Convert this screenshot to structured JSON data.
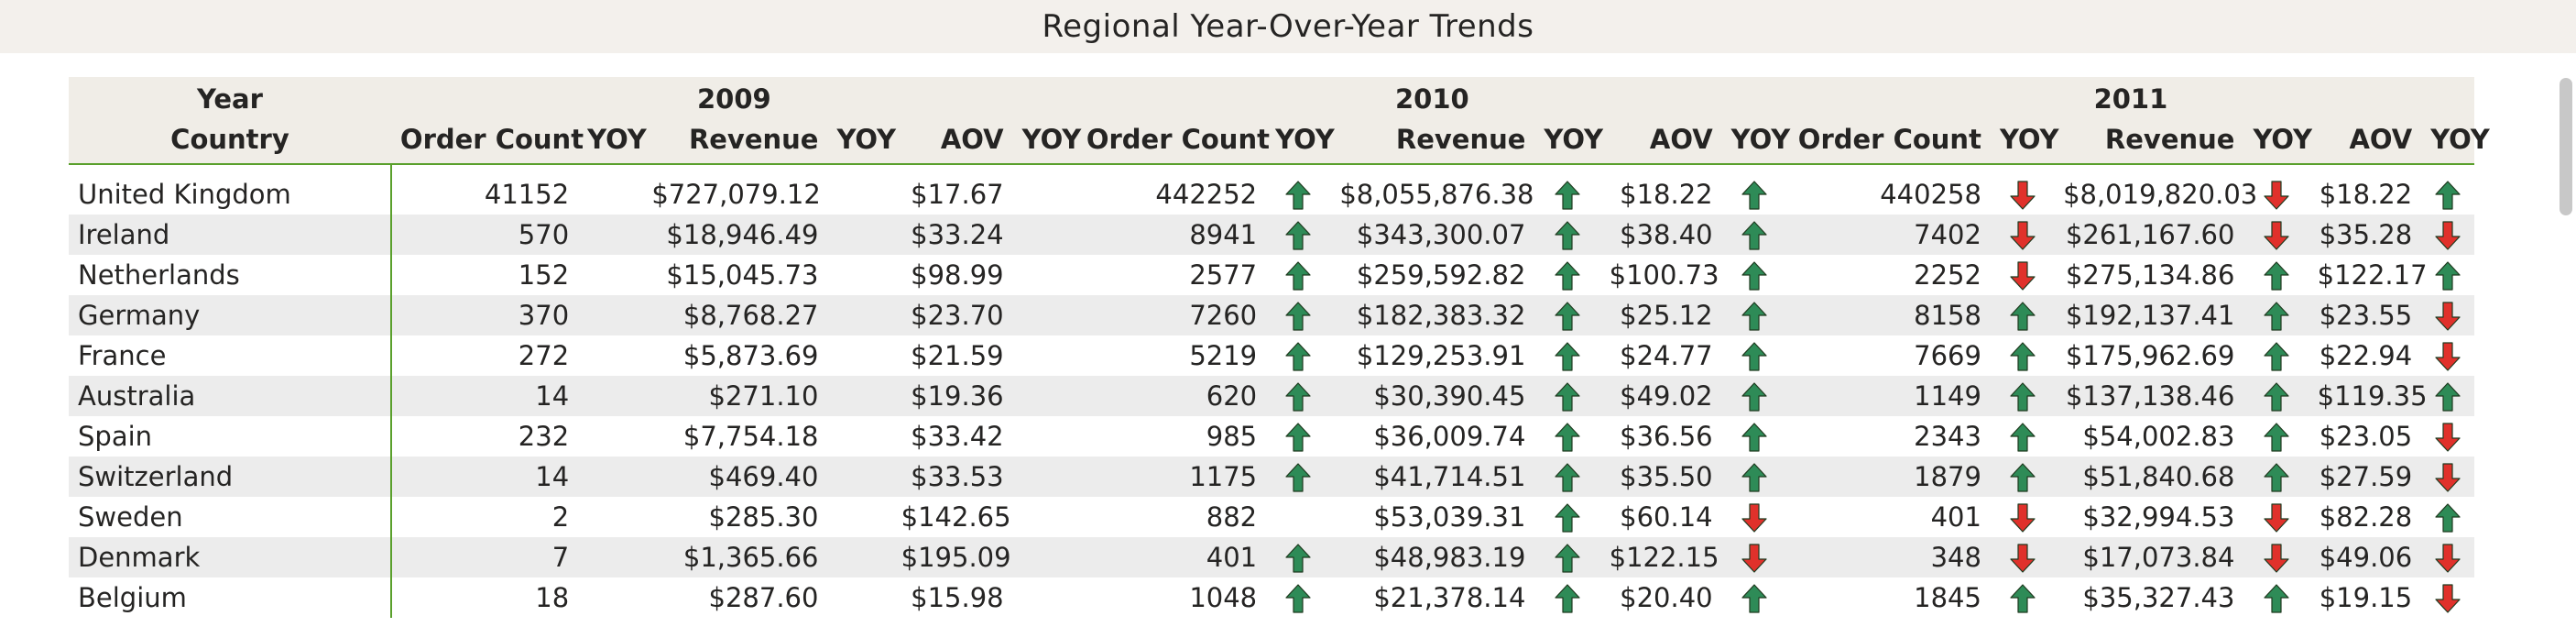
{
  "title": "Regional Year-Over-Year Trends",
  "header": {
    "row_label_year": "Year",
    "row_label_country": "Country",
    "years": [
      "2009",
      "2010",
      "2011"
    ],
    "columns": [
      "Order Count",
      "YOY",
      "Revenue",
      "YOY",
      "AOV",
      "YOY"
    ]
  },
  "colors": {
    "up_arrow": "#2e8b57",
    "down_arrow": "#e0312b",
    "accent_border": "#5aa02c"
  },
  "rows": [
    {
      "country": "United Kingdom",
      "y2009": {
        "orders": "41152",
        "revenue": "$727,079.12",
        "aov": "$17.67",
        "orders_yoy": "",
        "revenue_yoy": "",
        "aov_yoy": ""
      },
      "y2010": {
        "orders": "442252",
        "revenue": "$8,055,876.38",
        "aov": "$18.22",
        "orders_yoy": "up",
        "revenue_yoy": "up",
        "aov_yoy": "up"
      },
      "y2011": {
        "orders": "440258",
        "revenue": "$8,019,820.03",
        "aov": "$18.22",
        "orders_yoy": "down",
        "revenue_yoy": "down",
        "aov_yoy": "up"
      }
    },
    {
      "country": "Ireland",
      "y2009": {
        "orders": "570",
        "revenue": "$18,946.49",
        "aov": "$33.24",
        "orders_yoy": "",
        "revenue_yoy": "",
        "aov_yoy": ""
      },
      "y2010": {
        "orders": "8941",
        "revenue": "$343,300.07",
        "aov": "$38.40",
        "orders_yoy": "up",
        "revenue_yoy": "up",
        "aov_yoy": "up"
      },
      "y2011": {
        "orders": "7402",
        "revenue": "$261,167.60",
        "aov": "$35.28",
        "orders_yoy": "down",
        "revenue_yoy": "down",
        "aov_yoy": "down"
      }
    },
    {
      "country": "Netherlands",
      "y2009": {
        "orders": "152",
        "revenue": "$15,045.73",
        "aov": "$98.99",
        "orders_yoy": "",
        "revenue_yoy": "",
        "aov_yoy": ""
      },
      "y2010": {
        "orders": "2577",
        "revenue": "$259,592.82",
        "aov": "$100.73",
        "orders_yoy": "up",
        "revenue_yoy": "up",
        "aov_yoy": "up"
      },
      "y2011": {
        "orders": "2252",
        "revenue": "$275,134.86",
        "aov": "$122.17",
        "orders_yoy": "down",
        "revenue_yoy": "up",
        "aov_yoy": "up"
      }
    },
    {
      "country": "Germany",
      "y2009": {
        "orders": "370",
        "revenue": "$8,768.27",
        "aov": "$23.70",
        "orders_yoy": "",
        "revenue_yoy": "",
        "aov_yoy": ""
      },
      "y2010": {
        "orders": "7260",
        "revenue": "$182,383.32",
        "aov": "$25.12",
        "orders_yoy": "up",
        "revenue_yoy": "up",
        "aov_yoy": "up"
      },
      "y2011": {
        "orders": "8158",
        "revenue": "$192,137.41",
        "aov": "$23.55",
        "orders_yoy": "up",
        "revenue_yoy": "up",
        "aov_yoy": "down"
      }
    },
    {
      "country": "France",
      "y2009": {
        "orders": "272",
        "revenue": "$5,873.69",
        "aov": "$21.59",
        "orders_yoy": "",
        "revenue_yoy": "",
        "aov_yoy": ""
      },
      "y2010": {
        "orders": "5219",
        "revenue": "$129,253.91",
        "aov": "$24.77",
        "orders_yoy": "up",
        "revenue_yoy": "up",
        "aov_yoy": "up"
      },
      "y2011": {
        "orders": "7669",
        "revenue": "$175,962.69",
        "aov": "$22.94",
        "orders_yoy": "up",
        "revenue_yoy": "up",
        "aov_yoy": "down"
      }
    },
    {
      "country": "Australia",
      "y2009": {
        "orders": "14",
        "revenue": "$271.10",
        "aov": "$19.36",
        "orders_yoy": "",
        "revenue_yoy": "",
        "aov_yoy": ""
      },
      "y2010": {
        "orders": "620",
        "revenue": "$30,390.45",
        "aov": "$49.02",
        "orders_yoy": "up",
        "revenue_yoy": "up",
        "aov_yoy": "up"
      },
      "y2011": {
        "orders": "1149",
        "revenue": "$137,138.46",
        "aov": "$119.35",
        "orders_yoy": "up",
        "revenue_yoy": "up",
        "aov_yoy": "up"
      }
    },
    {
      "country": "Spain",
      "y2009": {
        "orders": "232",
        "revenue": "$7,754.18",
        "aov": "$33.42",
        "orders_yoy": "",
        "revenue_yoy": "",
        "aov_yoy": ""
      },
      "y2010": {
        "orders": "985",
        "revenue": "$36,009.74",
        "aov": "$36.56",
        "orders_yoy": "up",
        "revenue_yoy": "up",
        "aov_yoy": "up"
      },
      "y2011": {
        "orders": "2343",
        "revenue": "$54,002.83",
        "aov": "$23.05",
        "orders_yoy": "up",
        "revenue_yoy": "up",
        "aov_yoy": "down"
      }
    },
    {
      "country": "Switzerland",
      "y2009": {
        "orders": "14",
        "revenue": "$469.40",
        "aov": "$33.53",
        "orders_yoy": "",
        "revenue_yoy": "",
        "aov_yoy": ""
      },
      "y2010": {
        "orders": "1175",
        "revenue": "$41,714.51",
        "aov": "$35.50",
        "orders_yoy": "up",
        "revenue_yoy": "up",
        "aov_yoy": "up"
      },
      "y2011": {
        "orders": "1879",
        "revenue": "$51,840.68",
        "aov": "$27.59",
        "orders_yoy": "up",
        "revenue_yoy": "up",
        "aov_yoy": "down"
      }
    },
    {
      "country": "Sweden",
      "y2009": {
        "orders": "2",
        "revenue": "$285.30",
        "aov": "$142.65",
        "orders_yoy": "",
        "revenue_yoy": "",
        "aov_yoy": ""
      },
      "y2010": {
        "orders": "882",
        "revenue": "$53,039.31",
        "aov": "$60.14",
        "orders_yoy": "",
        "revenue_yoy": "up",
        "aov_yoy": "down"
      },
      "y2011": {
        "orders": "401",
        "revenue": "$32,994.53",
        "aov": "$82.28",
        "orders_yoy": "down",
        "revenue_yoy": "down",
        "aov_yoy": "up"
      }
    },
    {
      "country": "Denmark",
      "y2009": {
        "orders": "7",
        "revenue": "$1,365.66",
        "aov": "$195.09",
        "orders_yoy": "",
        "revenue_yoy": "",
        "aov_yoy": ""
      },
      "y2010": {
        "orders": "401",
        "revenue": "$48,983.19",
        "aov": "$122.15",
        "orders_yoy": "up",
        "revenue_yoy": "up",
        "aov_yoy": "down"
      },
      "y2011": {
        "orders": "348",
        "revenue": "$17,073.84",
        "aov": "$49.06",
        "orders_yoy": "down",
        "revenue_yoy": "down",
        "aov_yoy": "down"
      }
    },
    {
      "country": "Belgium",
      "y2009": {
        "orders": "18",
        "revenue": "$287.60",
        "aov": "$15.98",
        "orders_yoy": "",
        "revenue_yoy": "",
        "aov_yoy": ""
      },
      "y2010": {
        "orders": "1048",
        "revenue": "$21,378.14",
        "aov": "$20.40",
        "orders_yoy": "up",
        "revenue_yoy": "up",
        "aov_yoy": "up"
      },
      "y2011": {
        "orders": "1845",
        "revenue": "$35,327.43",
        "aov": "$19.15",
        "orders_yoy": "up",
        "revenue_yoy": "up",
        "aov_yoy": "down"
      }
    }
  ]
}
